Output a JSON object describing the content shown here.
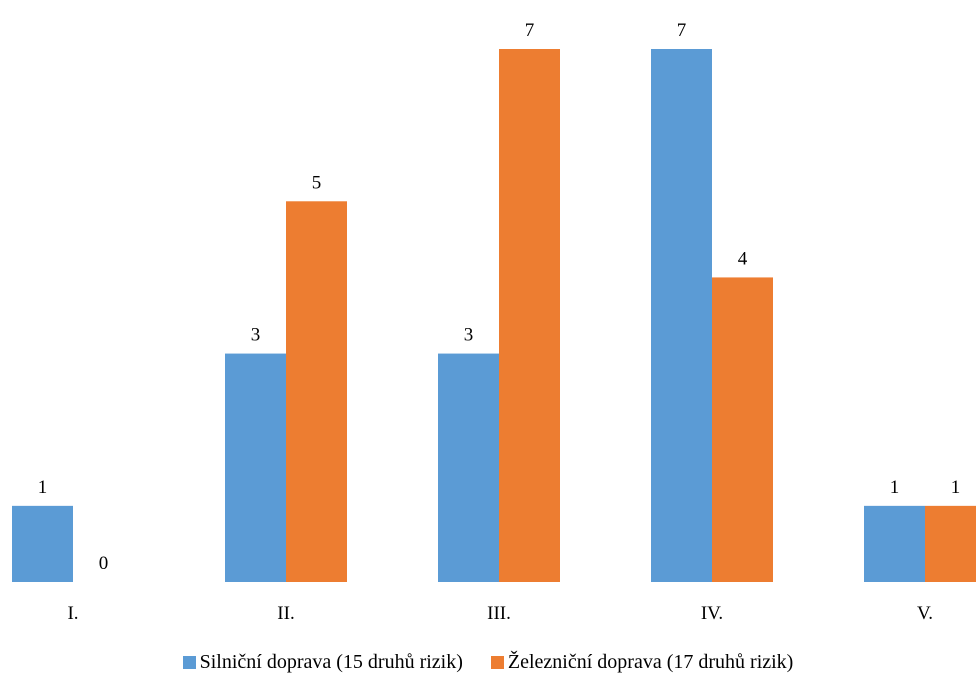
{
  "chart_data": {
    "type": "bar",
    "categories": [
      "I.",
      "II.",
      "III.",
      "IV.",
      "V."
    ],
    "series": [
      {
        "name": "Silniční doprava (15 druhů rizik)",
        "values": [
          1,
          3,
          3,
          7,
          1
        ],
        "color": "#5b9bd5"
      },
      {
        "name": "Železniční doprava (17 druhů rizik)",
        "values": [
          0,
          5,
          7,
          4,
          1
        ],
        "color": "#ed7d31"
      }
    ],
    "title": "",
    "xlabel": "",
    "ylabel": "",
    "ylim": [
      0,
      7
    ],
    "grid": false,
    "data_labels": true,
    "legend_position": "bottom"
  }
}
